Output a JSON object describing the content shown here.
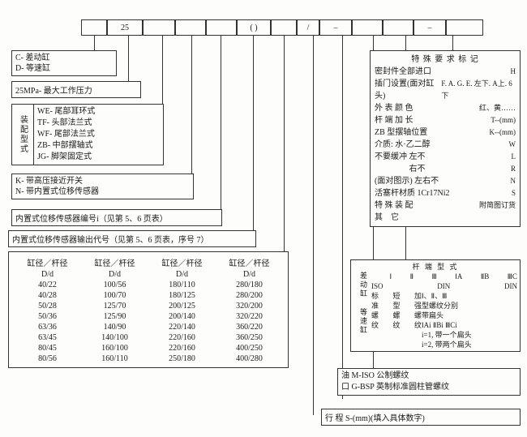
{
  "topInput": {
    "val1": "25",
    "paren": "( )",
    "slash1": "/",
    "dash1": "–",
    "dash2": "–"
  },
  "box_cd": {
    "l1": "C- 差动缸",
    "l2": "D- 等速缸"
  },
  "box_25mpa": "25MPa- 最大工作压力",
  "mount": {
    "side": "装配型式",
    "l1": "WE- 尾部耳环式",
    "l2": "TF- 头部法兰式",
    "l3": "WF- 尾部法兰式",
    "l4": "ZB- 中部摆轴式",
    "l5": "JG- 脚架固定式"
  },
  "box_kn": {
    "l1": "K- 带高压接近开关",
    "l2": "N- 带内置式位移传感器"
  },
  "box_sensor_id": "内置式位移传感器编号i（见第 5、6 页表）",
  "box_sensor_out": "内置式位移传感器输出代号（见第 5、6 页表，序号 7）",
  "dtable": {
    "head": [
      "缸径／杆径",
      "缸径／杆径",
      "缸径／杆径",
      "缸径／杆径"
    ],
    "sub": "D/d",
    "rows": [
      [
        "40/22",
        "100/56",
        "180/110",
        "280/180"
      ],
      [
        "40/28",
        "100/70",
        "180/125",
        "280/200"
      ],
      [
        "50/28",
        "125/70",
        "200/125",
        "320/200"
      ],
      [
        "50/36",
        "125/90",
        "200/140",
        "320/220"
      ],
      [
        "63/36",
        "140/90",
        "220/140",
        "360/220"
      ],
      [
        "63/45",
        "140/100",
        "220/160",
        "360/250"
      ],
      [
        "80/45",
        "160/100",
        "220/160",
        "400/250"
      ],
      [
        "80/56",
        "160/110",
        "250/180",
        "400/280"
      ]
    ]
  },
  "special": {
    "title": "特 殊 要 求    标    记",
    "rows": [
      [
        "密封件全部进口",
        "H"
      ],
      [
        "插门设置(面对缸头)",
        "F. A. G. E. 左下. A上. 6下"
      ],
      [
        "外 表 颜 色",
        "红、黄……"
      ],
      [
        "杆 端 加 长",
        "T--(mm)"
      ],
      [
        "ZB 型摆轴位置",
        "K--(mm)"
      ],
      [
        "介质: 水·乙二醇",
        "W"
      ],
      [
        "不要缓冲  左不",
        "L"
      ],
      [
        "　　　　  右不",
        "R"
      ],
      [
        "(面对图示)  左右不",
        "N"
      ],
      [
        "活塞杆材质 1Cr17Ni2",
        "S"
      ],
      [
        "特 殊 装 配",
        "附简图订货"
      ],
      [
        "其　它",
        ""
      ]
    ]
  },
  "rodend": {
    "title": "杆 端 型 式",
    "side": "差动缸  等速缸",
    "c1": [
      "",
      "ISO",
      "标",
      "准",
      "螺",
      "纹"
    ],
    "c2": [
      "Ⅰ",
      "DIN",
      "短",
      "型",
      "螺",
      "纹"
    ],
    "c3": [
      "Ⅱ",
      "DIN",
      "加",
      "强",
      "螺",
      "纹"
    ],
    "c4": [
      "Ⅲ",
      "",
      "",
      "Ⅰ、Ⅱ、Ⅲ",
      "型螺纹分别",
      "带扁头"
    ],
    "c5": [
      "ⅠA",
      "",
      "",
      "",
      "",
      ""
    ],
    "c6": [
      "ⅡB",
      "ⅠAi ⅡBi ⅢCi",
      "i=1, 带一个扁头",
      "i=2, 带两个扁头",
      "",
      ""
    ],
    "c7": [
      "ⅢC",
      "",
      "",
      "",
      "",
      ""
    ]
  },
  "thread": {
    "l1": "油    M-ISO 公制螺纹",
    "l2": "口    G-BSP 英制标准圆柱管螺纹"
  },
  "stroke": "行 程 S-(mm)(填入具体数字)"
}
